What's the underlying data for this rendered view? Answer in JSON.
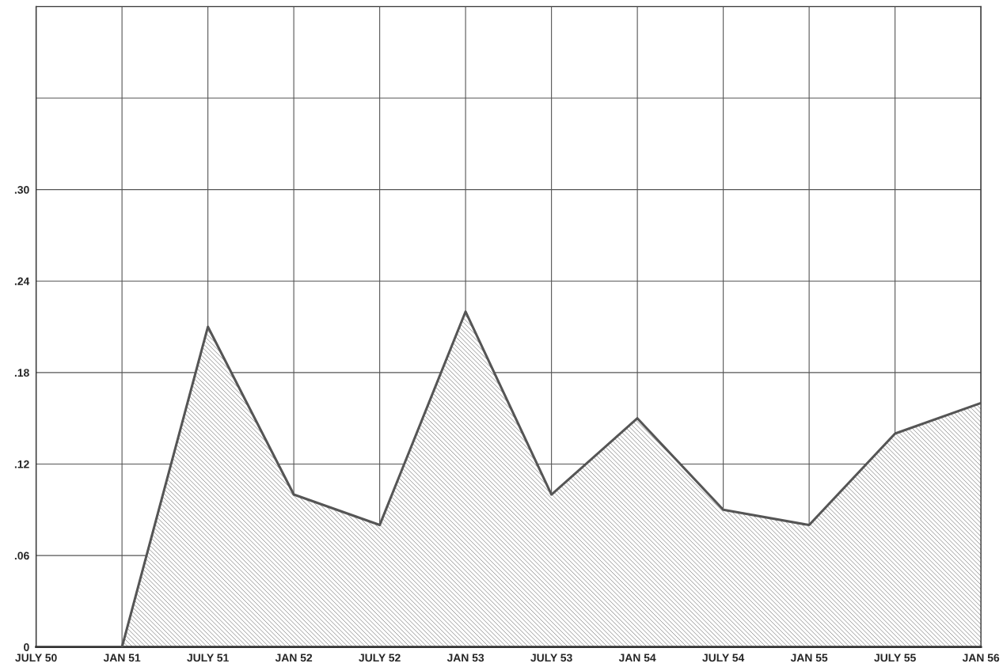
{
  "chart_data": {
    "type": "area",
    "categories": [
      "JULY 50",
      "JAN 51",
      "JULY 51",
      "JAN 52",
      "JULY 52",
      "JAN 53",
      "JULY 53",
      "JAN 54",
      "JULY 54",
      "JAN 55",
      "JULY 55",
      "JAN 56"
    ],
    "series": [
      {
        "color": "#555555",
        "values": [
          null,
          0,
          0.21,
          0.1,
          0.08,
          0.22,
          0.1,
          0.15,
          0.09,
          0.08,
          0.14,
          0.16
        ]
      }
    ],
    "ylim": [
      0,
      0.42
    ],
    "yticks": [
      0,
      {
        "value": 0.06,
        "label": ".06"
      },
      {
        "value": 0.12,
        "label": ".12"
      },
      {
        "value": 0.18,
        "label": ".18"
      },
      {
        "value": 0.24,
        "label": ".24"
      },
      {
        "value": 0.3,
        "label": ".30"
      },
      {
        "value": 0.36,
        "label": null
      },
      {
        "value": 0.42,
        "label": null
      }
    ],
    "grid": true
  }
}
